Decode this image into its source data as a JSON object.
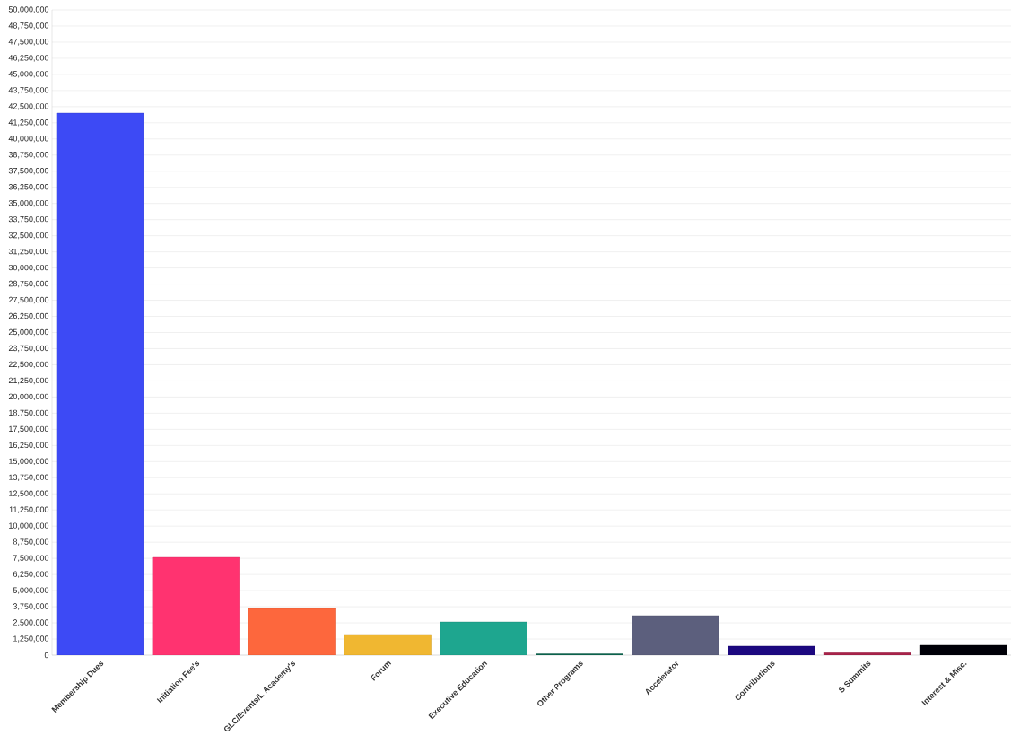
{
  "chart_data": {
    "type": "bar",
    "categories": [
      "Membership Dues",
      "Initiation Fee's",
      "GLC/Events/L Academy's",
      "Forum",
      "Executive Education",
      "Other Programs",
      "Accelerator",
      "Contributions",
      "S Summits",
      "Interest & Misc."
    ],
    "values": [
      42000000,
      7580000,
      3620000,
      1600000,
      2570000,
      100000,
      3060000,
      700000,
      200000,
      770000
    ],
    "colors": [
      "#3d4af5",
      "#ff3370",
      "#fd673d",
      "#f0b731",
      "#1ea68f",
      "#0d6650",
      "#5c5f7d",
      "#1c0880",
      "#a8234a",
      "#000008"
    ],
    "ylim": [
      0,
      50000000
    ],
    "yticks": [
      0,
      {
        "value": 1250000,
        "label": "1,250,000"
      },
      {
        "value": 2500000,
        "label": "2,500,000"
      },
      {
        "value": 3750000,
        "label": "3,750,000"
      },
      {
        "value": 5000000,
        "label": "5,000,000"
      },
      {
        "value": 6250000,
        "label": "6,250,000"
      },
      {
        "value": 7500000,
        "label": "7,500,000"
      },
      {
        "value": 8750000,
        "label": "8,750,000"
      },
      {
        "value": 10000000,
        "label": "10,000,000"
      },
      {
        "value": 11250000,
        "label": "11,250,000"
      },
      {
        "value": 12500000,
        "label": "12,500,000"
      },
      {
        "value": 13750000,
        "label": "13,750,000"
      },
      {
        "value": 15000000,
        "label": "15,000,000"
      },
      {
        "value": 16250000,
        "label": "16,250,000"
      },
      {
        "value": 17500000,
        "label": "17,500,000"
      },
      {
        "value": 18750000,
        "label": "18,750,000"
      },
      {
        "value": 20000000,
        "label": "20,000,000"
      },
      {
        "value": 21250000,
        "label": "21,250,000"
      },
      {
        "value": 22500000,
        "label": "22,500,000"
      },
      {
        "value": 23750000,
        "label": "23,750,000"
      },
      {
        "value": 25000000,
        "label": "25,000,000"
      },
      {
        "value": 26250000,
        "label": "26,250,000"
      },
      {
        "value": 27500000,
        "label": "27,500,000"
      },
      {
        "value": 28750000,
        "label": "28,750,000"
      },
      {
        "value": 30000000,
        "label": "30,000,000"
      },
      {
        "value": 31250000,
        "label": "31,250,000"
      },
      {
        "value": 32500000,
        "label": "32,500,000"
      },
      {
        "value": 33750000,
        "label": "33,750,000"
      },
      {
        "value": 35000000,
        "label": "35,000,000"
      },
      {
        "value": 36250000,
        "label": "36,250,000"
      },
      {
        "value": 37500000,
        "label": "37,500,000"
      },
      {
        "value": 38750000,
        "label": "38,750,000"
      },
      {
        "value": 40000000,
        "label": "40,000,000"
      },
      {
        "value": 41250000,
        "label": "41,250,000"
      },
      {
        "value": 42500000,
        "label": "42,500,000"
      },
      {
        "value": 43750000,
        "label": "43,750,000"
      },
      {
        "value": 45000000,
        "label": "45,000,000"
      },
      {
        "value": 46250000,
        "label": "46,250,000"
      },
      {
        "value": 47500000,
        "label": "47,500,000"
      },
      {
        "value": 48750000,
        "label": "48,750,000"
      },
      {
        "value": 50000000,
        "label": "50,000,000"
      }
    ],
    "grid": "y"
  }
}
